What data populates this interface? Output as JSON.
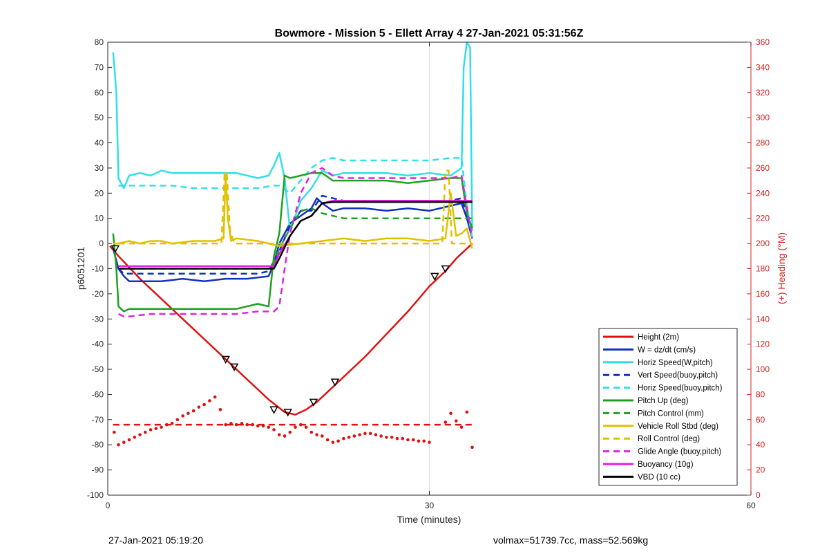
{
  "chart_data": {
    "type": "line",
    "title": "Bowmore - Mission 5 - Ellett Array 4 27-Jan-2021 05:31:56Z",
    "xlabel": "Time (minutes)",
    "ylabel": "p6051201",
    "y2label": "(+) Heading (°M)",
    "xlim": [
      0,
      60
    ],
    "ylim": [
      -100,
      80
    ],
    "y2lim": [
      0,
      360
    ],
    "x_ticks": [
      0,
      30,
      60
    ],
    "y_ticks": [
      80,
      70,
      60,
      50,
      40,
      30,
      20,
      10,
      0,
      -10,
      -20,
      -30,
      -40,
      -50,
      -60,
      -70,
      -80,
      -90,
      -100
    ],
    "y2_ticks": [
      360,
      340,
      320,
      300,
      280,
      260,
      240,
      220,
      200,
      180,
      160,
      140,
      120,
      100,
      80,
      60,
      40,
      20,
      0
    ],
    "grid": "x-only",
    "legend_position": "bottom-right",
    "series": [
      {
        "name": "Height (2m)",
        "color": "#e01010",
        "style": "solid",
        "axis": "left",
        "x": [
          0.2,
          1,
          3,
          5,
          7,
          9,
          11,
          13,
          15,
          16.5,
          17.5,
          18.5,
          19.5,
          20.5,
          22,
          24,
          26,
          28,
          30,
          31.5,
          32.5,
          33.5,
          34
        ],
        "y": [
          -1,
          -5,
          -14,
          -22,
          -30,
          -38,
          -46,
          -54,
          -62,
          -67,
          -68,
          -66,
          -63,
          -59,
          -53,
          -45,
          -36,
          -27,
          -17,
          -11,
          -6,
          -2,
          0
        ]
      },
      {
        "name": "W = dz/dt (cm/s)",
        "color": "#1030c0",
        "style": "solid",
        "axis": "left",
        "x": [
          0.5,
          1,
          1.5,
          2,
          3,
          5,
          7,
          9,
          11,
          13,
          15,
          15.5,
          16,
          17,
          18,
          19,
          19.5,
          20,
          21,
          22,
          24,
          26,
          28,
          30,
          32,
          33,
          33.5,
          34
        ],
        "y": [
          -2,
          -10,
          -13,
          -15,
          -15,
          -15,
          -14,
          -15,
          -14,
          -14,
          -13,
          -8,
          0,
          8,
          11,
          14,
          18,
          16,
          13,
          14,
          14,
          13,
          14,
          13,
          15,
          16,
          10,
          2
        ]
      },
      {
        "name": "Horiz Speed(W,pitch)",
        "color": "#30e0e8",
        "style": "solid",
        "axis": "left",
        "x": [
          0.5,
          0.8,
          1,
          1.5,
          2,
          3,
          4,
          5,
          6,
          8,
          10,
          12,
          14,
          15,
          15.5,
          16,
          16.5,
          17,
          18,
          19,
          20,
          21,
          22,
          24,
          26,
          28,
          30,
          32,
          33,
          33.2,
          33.5,
          33.8,
          34
        ],
        "y": [
          76,
          60,
          26,
          22,
          27,
          28,
          27,
          29,
          28,
          28,
          28,
          28,
          26,
          27,
          31,
          36,
          26,
          5,
          17,
          22,
          29,
          27,
          28,
          28,
          28,
          27,
          28,
          27,
          30,
          70,
          80,
          78,
          5
        ]
      },
      {
        "name": "Vert Speed(buoy,pitch)",
        "color": "#1030c0",
        "style": "dashed",
        "axis": "left",
        "x": [
          1,
          1.5,
          2,
          4,
          6,
          8,
          10,
          12,
          14,
          15,
          16,
          17,
          18,
          19,
          20,
          22,
          24,
          26,
          28,
          30,
          32,
          33,
          33.5,
          34
        ],
        "y": [
          -10,
          -12,
          -12,
          -12,
          -12,
          -12,
          -12,
          -12,
          -12,
          -11,
          -3,
          7,
          13,
          13,
          19,
          17,
          17,
          17,
          17,
          17,
          17,
          18,
          12,
          2
        ]
      },
      {
        "name": "Horiz Speed(buoy,pitch)",
        "color": "#30e0e8",
        "style": "dashed",
        "axis": "left",
        "x": [
          1,
          1.5,
          2,
          4,
          6,
          8,
          10,
          12,
          14,
          15.5,
          16,
          17,
          18,
          19,
          20,
          21,
          22,
          24,
          26,
          28,
          30,
          32,
          33,
          33.5,
          34
        ],
        "y": [
          23,
          23,
          23,
          23,
          23,
          22,
          22,
          22,
          22,
          23,
          23,
          20,
          25,
          30,
          33,
          34,
          33,
          33,
          33,
          33,
          33,
          34,
          34,
          15,
          2
        ]
      },
      {
        "name": "Pitch Up (deg)",
        "color": "#20a020",
        "style": "solid",
        "axis": "left",
        "x": [
          0.5,
          0.8,
          1,
          1.5,
          2,
          4,
          6,
          8,
          10,
          12,
          14,
          15,
          15.5,
          16,
          16.5,
          17,
          18,
          19,
          20,
          21,
          22,
          24,
          26,
          28,
          30,
          32,
          33,
          33.5,
          34
        ],
        "y": [
          4,
          -10,
          -25,
          -27,
          -26,
          -26,
          -26,
          -26,
          -26,
          -26,
          -24,
          -25,
          -5,
          4,
          27,
          26,
          27,
          28,
          28,
          25,
          25,
          25,
          25,
          24,
          25,
          26,
          26,
          12,
          6
        ]
      },
      {
        "name": "Pitch Control (mm)",
        "color": "#20a020",
        "style": "dashed",
        "axis": "left",
        "x": [
          1,
          2,
          4,
          6,
          8,
          10,
          12,
          14,
          15,
          15.5,
          16,
          17,
          18,
          19,
          20,
          21,
          22,
          24,
          26,
          28,
          30,
          32,
          33,
          34
        ],
        "y": [
          -10,
          -10,
          -10,
          -10,
          -10,
          -10,
          -10,
          -10,
          -10,
          -8,
          -2,
          6,
          13,
          14,
          12,
          11,
          10,
          10,
          10,
          10,
          10,
          10,
          10,
          10
        ]
      },
      {
        "name": "Vehicle Roll Stbd (deg)",
        "color": "#e0c000",
        "style": "solid",
        "axis": "left",
        "x": [
          0.5,
          1,
          2,
          3,
          4,
          5,
          6,
          8,
          10,
          10.8,
          11,
          11.2,
          11.5,
          12,
          14,
          16,
          18,
          20,
          22,
          24,
          26,
          28,
          30,
          31.5,
          32,
          32.5,
          33,
          33.5,
          34
        ],
        "y": [
          0,
          0,
          1,
          0,
          1,
          1,
          0,
          1,
          1,
          2,
          28,
          10,
          1,
          2,
          1,
          -1,
          0,
          1,
          2,
          1,
          2,
          2,
          1,
          2,
          20,
          3,
          4,
          6,
          -2
        ]
      },
      {
        "name": "Roll Control (deg)",
        "color": "#e0c000",
        "style": "dashed",
        "axis": "left",
        "x": [
          1,
          10.6,
          10.9,
          11.1,
          11.4,
          11.8,
          31.2,
          31.5,
          31.8,
          32.1,
          34
        ],
        "y": [
          0,
          0,
          28,
          28,
          5,
          0,
          0,
          29,
          29,
          0,
          0
        ]
      },
      {
        "name": "Glide Angle (buoy,pitch)",
        "color": "#e020e0",
        "style": "dashed",
        "axis": "left",
        "x": [
          1,
          1.5,
          2,
          4,
          6,
          8,
          10,
          12,
          14,
          15.5,
          16,
          16.5,
          17,
          18,
          19,
          20,
          21,
          22,
          24,
          26,
          28,
          30,
          32,
          33,
          34
        ],
        "y": [
          -28,
          -29,
          -29,
          -28,
          -28,
          -28,
          -28,
          -28,
          -27,
          -27,
          -25,
          -10,
          4,
          20,
          28,
          30,
          27,
          26,
          26,
          26,
          26,
          26,
          26,
          27,
          2
        ]
      },
      {
        "name": "Buoyancy (10g)",
        "color": "#e020e0",
        "style": "solid",
        "axis": "left",
        "x": [
          1,
          15.5,
          16,
          17,
          18,
          19,
          20,
          21,
          34
        ],
        "y": [
          -9,
          -9,
          -4,
          3,
          9,
          11,
          16,
          17,
          17
        ]
      },
      {
        "name": "VBD (10 cc)",
        "color": "#000000",
        "style": "solid",
        "axis": "left",
        "x": [
          1,
          15.5,
          16,
          17,
          18,
          19,
          20,
          21,
          34
        ],
        "y": [
          -10,
          -10,
          -6,
          3,
          9,
          11,
          16,
          16.5,
          16.5
        ]
      },
      {
        "name": "",
        "color": "#e01010",
        "style": "dashed",
        "axis": "right",
        "x": [
          0.5,
          34
        ],
        "y": [
          56,
          56
        ]
      },
      {
        "name": "",
        "color": "#e01010",
        "style": "dots",
        "axis": "right",
        "x": [
          0.6,
          1,
          1.5,
          2,
          2.5,
          3,
          3.5,
          4,
          4.5,
          5,
          5.5,
          6,
          6.5,
          7,
          7.5,
          8,
          8.5,
          9,
          9.5,
          10,
          10.5,
          11,
          11.5,
          12,
          12.5,
          13,
          13.5,
          14,
          14.5,
          15,
          15.5,
          16,
          16.5,
          17,
          17.5,
          18,
          18.5,
          19,
          19.5,
          20,
          20.5,
          21,
          21.5,
          22,
          22.5,
          23,
          23.5,
          24,
          24.5,
          25,
          25.5,
          26,
          26.5,
          27,
          27.5,
          28,
          28.5,
          29,
          29.5,
          30,
          31.5,
          32,
          32.5,
          33,
          33.5,
          34
        ],
        "y": [
          50,
          40,
          42,
          44,
          46,
          48,
          50,
          52,
          53,
          54,
          56,
          57,
          60,
          63,
          65,
          67,
          70,
          72,
          75,
          78,
          68,
          56,
          57,
          56,
          57,
          56,
          56,
          55,
          55,
          54,
          52,
          48,
          47,
          50,
          54,
          56,
          54,
          50,
          48,
          47,
          44,
          42,
          43,
          45,
          46,
          47,
          48,
          49,
          49,
          48,
          47,
          46,
          46,
          45,
          45,
          44,
          44,
          43,
          43,
          42,
          58,
          65,
          59,
          54,
          66,
          38
        ]
      },
      {
        "name": "",
        "color": "#000000",
        "style": "markers",
        "axis": "left",
        "x": [
          0.7,
          11,
          11.8,
          15.5,
          16.8,
          19.2,
          21.2,
          30.5,
          31.5
        ],
        "y": [
          -2,
          -46,
          -49,
          -66,
          -67,
          -63,
          -55,
          -13,
          -10
        ]
      }
    ]
  },
  "footer": {
    "left_text": "27-Jan-2021 05:19:20",
    "right_text": "volmax=51739.7cc, mass=52.569kg"
  }
}
